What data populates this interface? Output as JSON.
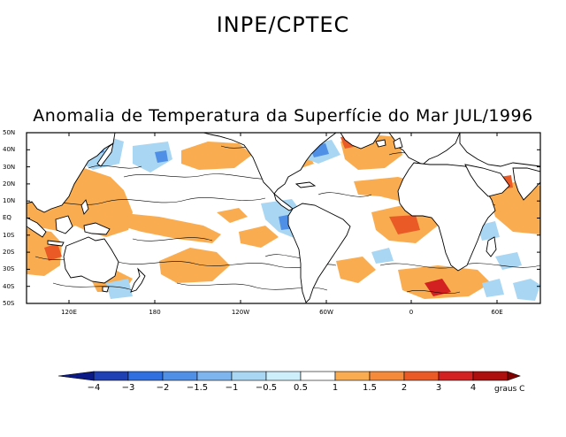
{
  "header": {
    "title": "INPE/CPTEC"
  },
  "map": {
    "subtitle": "Anomalia de Temperatura da Superfície do Mar JUL/1996",
    "lat_labels": [
      "50N",
      "40N",
      "30N",
      "20N",
      "10N",
      "EQ",
      "10S",
      "20S",
      "30S",
      "40S",
      "50S"
    ],
    "lon_labels": [
      "120E",
      "180",
      "120W",
      "60W",
      "0",
      "60E"
    ]
  },
  "legend": {
    "units": "graus C",
    "ticks": [
      "-4",
      "-3",
      "-2",
      "-1.5",
      "-1",
      "-0.5",
      "0.5",
      "1",
      "1.5",
      "2",
      "3",
      "4"
    ],
    "colors": [
      "#1f3fb5",
      "#2f6fe0",
      "#4f8fe6",
      "#7fb5ee",
      "#a8d6f3",
      "#cdeefb",
      "#ffffff",
      "#f9ad50",
      "#f58a3a",
      "#ea5a26",
      "#d32020",
      "#ad0f0f"
    ]
  },
  "colors": {
    "land": "#ffffff",
    "ocean_background": "#ffffff",
    "warm_anomaly": "#f9ad50",
    "strong_warm_anomaly": "#ea5a26",
    "cool_anomaly": "#a8d6f3",
    "strong_cool_anomaly": "#4f8fe6",
    "contour": "#000000"
  }
}
